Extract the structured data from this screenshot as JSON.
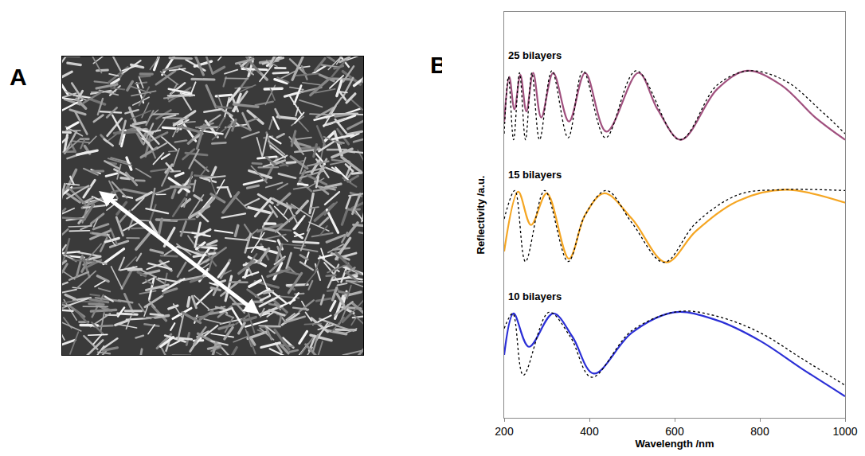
{
  "panel_labels": [
    "A",
    "B"
  ],
  "chart_data": {
    "type": "line",
    "x_label": "Wavelength /nm",
    "y_label": "Reflectivity /a.u.",
    "xlim": [
      200,
      1000
    ],
    "xticks": [
      200,
      400,
      600,
      800,
      1000
    ],
    "ylim": [
      0,
      10
    ],
    "yticks": [],
    "tick_labels": "x",
    "grid": false,
    "annotations": [
      {
        "text": "25 bilayers",
        "x": 205,
        "y": 8.75
      },
      {
        "text": "15 bilayers",
        "x": 205,
        "y": 5.8
      },
      {
        "text": "10 bilayers",
        "x": 205,
        "y": 2.8
      }
    ],
    "series": [
      {
        "color": "#a0507e",
        "line_style": "solid",
        "x": [
          200,
          212,
          224,
          238,
          252,
          268,
          287,
          315,
          352,
          390,
          440,
          515,
          560,
          615,
          700,
          770,
          850,
          930,
          1000
        ],
        "values": [
          7.3,
          8.4,
          7.6,
          8.45,
          7.55,
          8.5,
          7.4,
          8.5,
          7.3,
          8.5,
          7.05,
          8.5,
          7.6,
          6.85,
          8.1,
          8.55,
          8.2,
          7.4,
          6.85
        ]
      },
      {
        "color": "#000000",
        "line_style": "dotted",
        "x": [
          200,
          210,
          222,
          236,
          250,
          265,
          283,
          312,
          350,
          385,
          438,
          510,
          612,
          700,
          775,
          860,
          940,
          1000
        ],
        "values": [
          7.0,
          8.4,
          6.85,
          8.5,
          6.85,
          8.5,
          6.85,
          8.55,
          6.9,
          8.55,
          6.9,
          8.55,
          6.85,
          8.2,
          8.55,
          8.3,
          7.6,
          7.0
        ]
      },
      {
        "color": "#f5a623",
        "line_style": "solid",
        "x": [
          200,
          233,
          263,
          300,
          352,
          390,
          435,
          500,
          580,
          650,
          750,
          860,
          1000
        ],
        "values": [
          4.1,
          5.57,
          4.75,
          5.53,
          3.92,
          5.0,
          5.53,
          4.9,
          3.83,
          4.6,
          5.35,
          5.62,
          5.3
        ]
      },
      {
        "color": "#000000",
        "line_style": "dotted",
        "x": [
          200,
          225,
          250,
          295,
          350,
          390,
          440,
          500,
          575,
          650,
          750,
          850,
          1000
        ],
        "values": [
          4.9,
          5.6,
          3.85,
          5.6,
          3.85,
          5.0,
          5.6,
          4.8,
          3.83,
          4.8,
          5.5,
          5.62,
          5.6
        ]
      },
      {
        "color": "#2b2fd6",
        "line_style": "solid",
        "x": [
          200,
          222,
          258,
          315,
          360,
          410,
          500,
          600,
          700,
          800,
          900,
          1000
        ],
        "values": [
          1.55,
          2.57,
          1.75,
          2.57,
          2.0,
          1.09,
          2.1,
          2.6,
          2.4,
          1.9,
          1.2,
          0.53
        ]
      },
      {
        "color": "#000000",
        "line_style": "dotted",
        "x": [
          200,
          220,
          245,
          305,
          355,
          405,
          500,
          610,
          700,
          800,
          900,
          1000
        ],
        "values": [
          2.2,
          2.57,
          1.05,
          2.6,
          2.0,
          1.0,
          2.15,
          2.62,
          2.5,
          2.1,
          1.45,
          0.8
        ]
      }
    ]
  }
}
